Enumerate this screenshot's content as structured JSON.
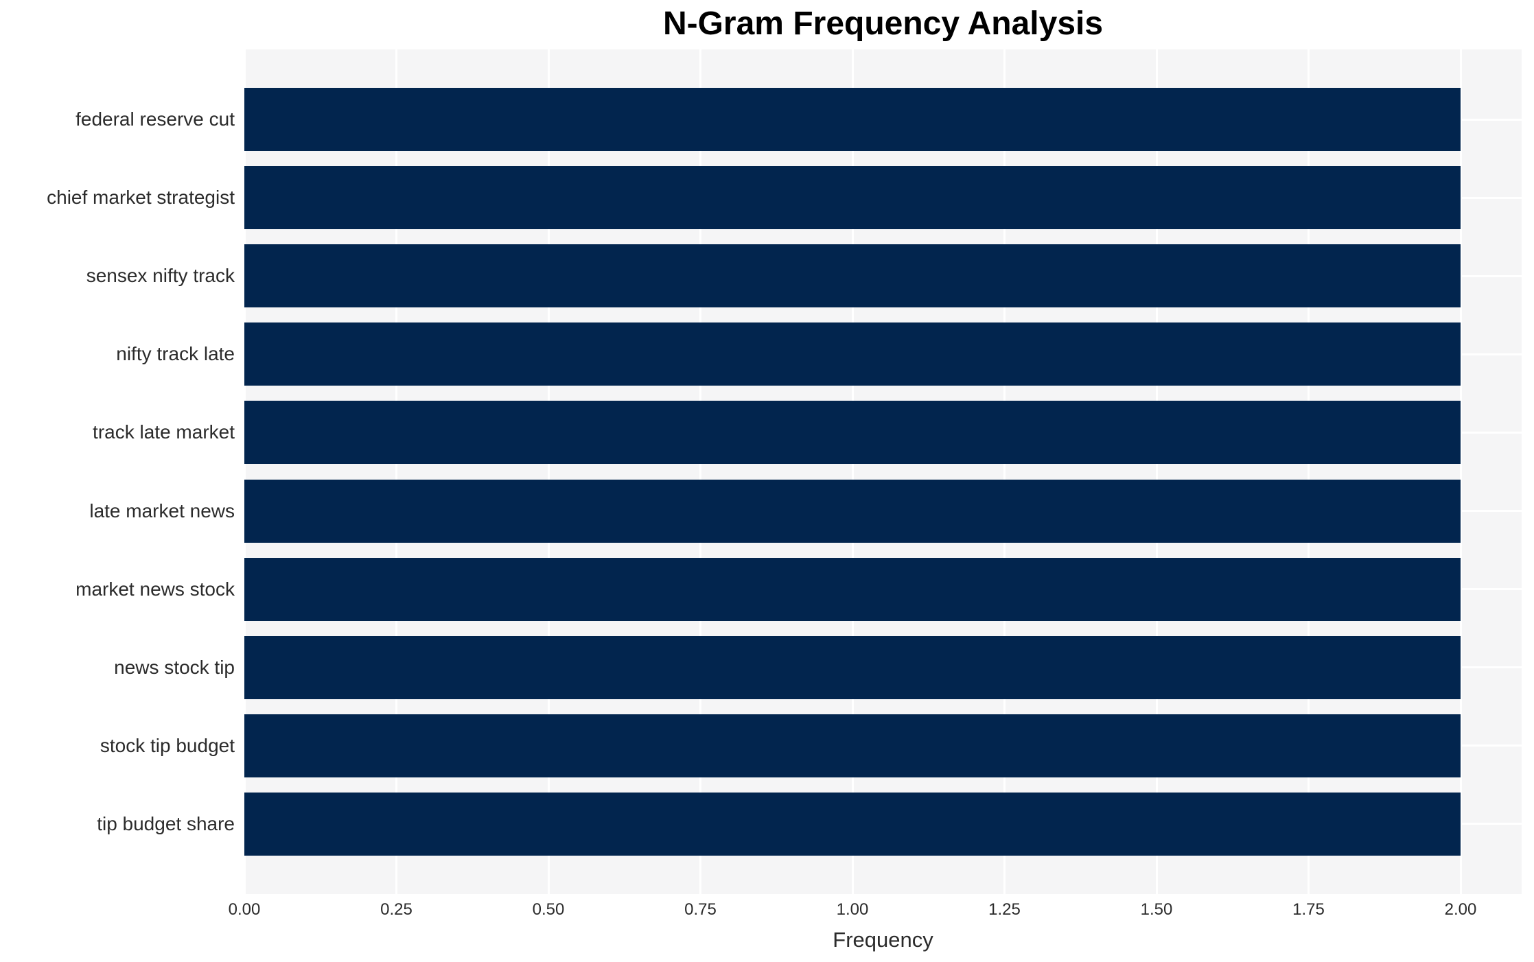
{
  "figure": {
    "title": "N-Gram Frequency Analysis",
    "x_axis_title": "Frequency"
  },
  "colors": {
    "bar": "#02254e",
    "plot_background": "#f5f5f6",
    "gridline": "#ffffff",
    "tick_label": "#2b2b2b",
    "title": "#000000",
    "figure_background": "#ffffff"
  },
  "chart_data": {
    "type": "bar",
    "orientation": "horizontal",
    "title": "N-Gram Frequency Analysis",
    "xlabel": "Frequency",
    "ylabel": "",
    "categories": [
      "federal reserve cut",
      "chief market strategist",
      "sensex nifty track",
      "nifty track late",
      "track late market",
      "late market news",
      "market news stock",
      "news stock tip",
      "stock tip budget",
      "tip budget share"
    ],
    "values": [
      2,
      2,
      2,
      2,
      2,
      2,
      2,
      2,
      2,
      2
    ],
    "xlim": [
      0,
      2.1
    ],
    "xtick_values": [
      0,
      0.25,
      0.5,
      0.75,
      1.0,
      1.25,
      1.5,
      1.75,
      2.0
    ],
    "xtick_labels": [
      "0.00",
      "0.25",
      "0.50",
      "0.75",
      "1.00",
      "1.25",
      "1.50",
      "1.75",
      "2.00"
    ],
    "grid": true,
    "legend_position": "none"
  }
}
